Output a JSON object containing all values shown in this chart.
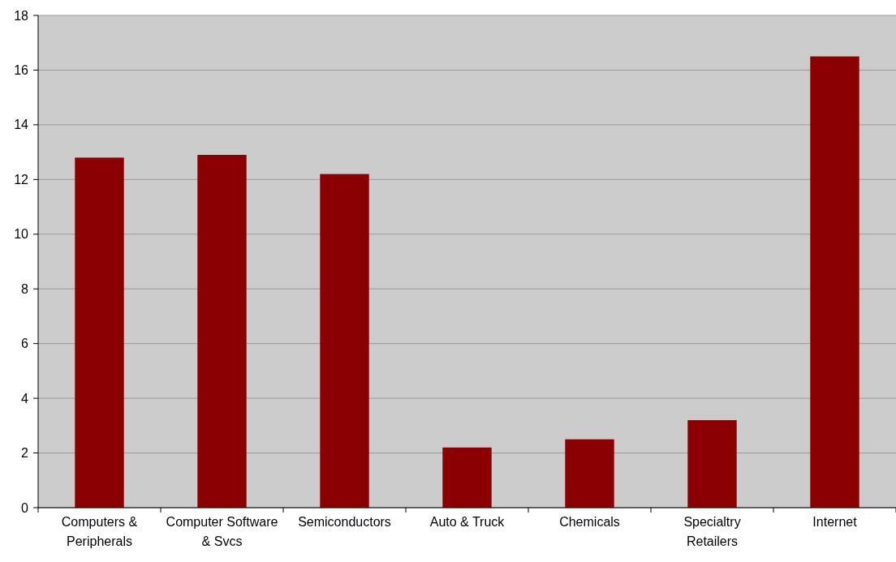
{
  "chart_data": {
    "type": "bar",
    "categories": [
      "Computers & Peripherals",
      "Computer Software & Svcs",
      "Semiconductors",
      "Auto & Truck",
      "Chemicals",
      "Specialtry Retailers",
      "Internet"
    ],
    "values": [
      12.8,
      12.9,
      12.2,
      2.2,
      2.5,
      3.2,
      16.5
    ],
    "color": "#8b0000",
    "ylim": [
      0,
      18
    ],
    "yticks": [
      0,
      2,
      4,
      6,
      8,
      10,
      12,
      14,
      16,
      18
    ],
    "grid": "y"
  }
}
